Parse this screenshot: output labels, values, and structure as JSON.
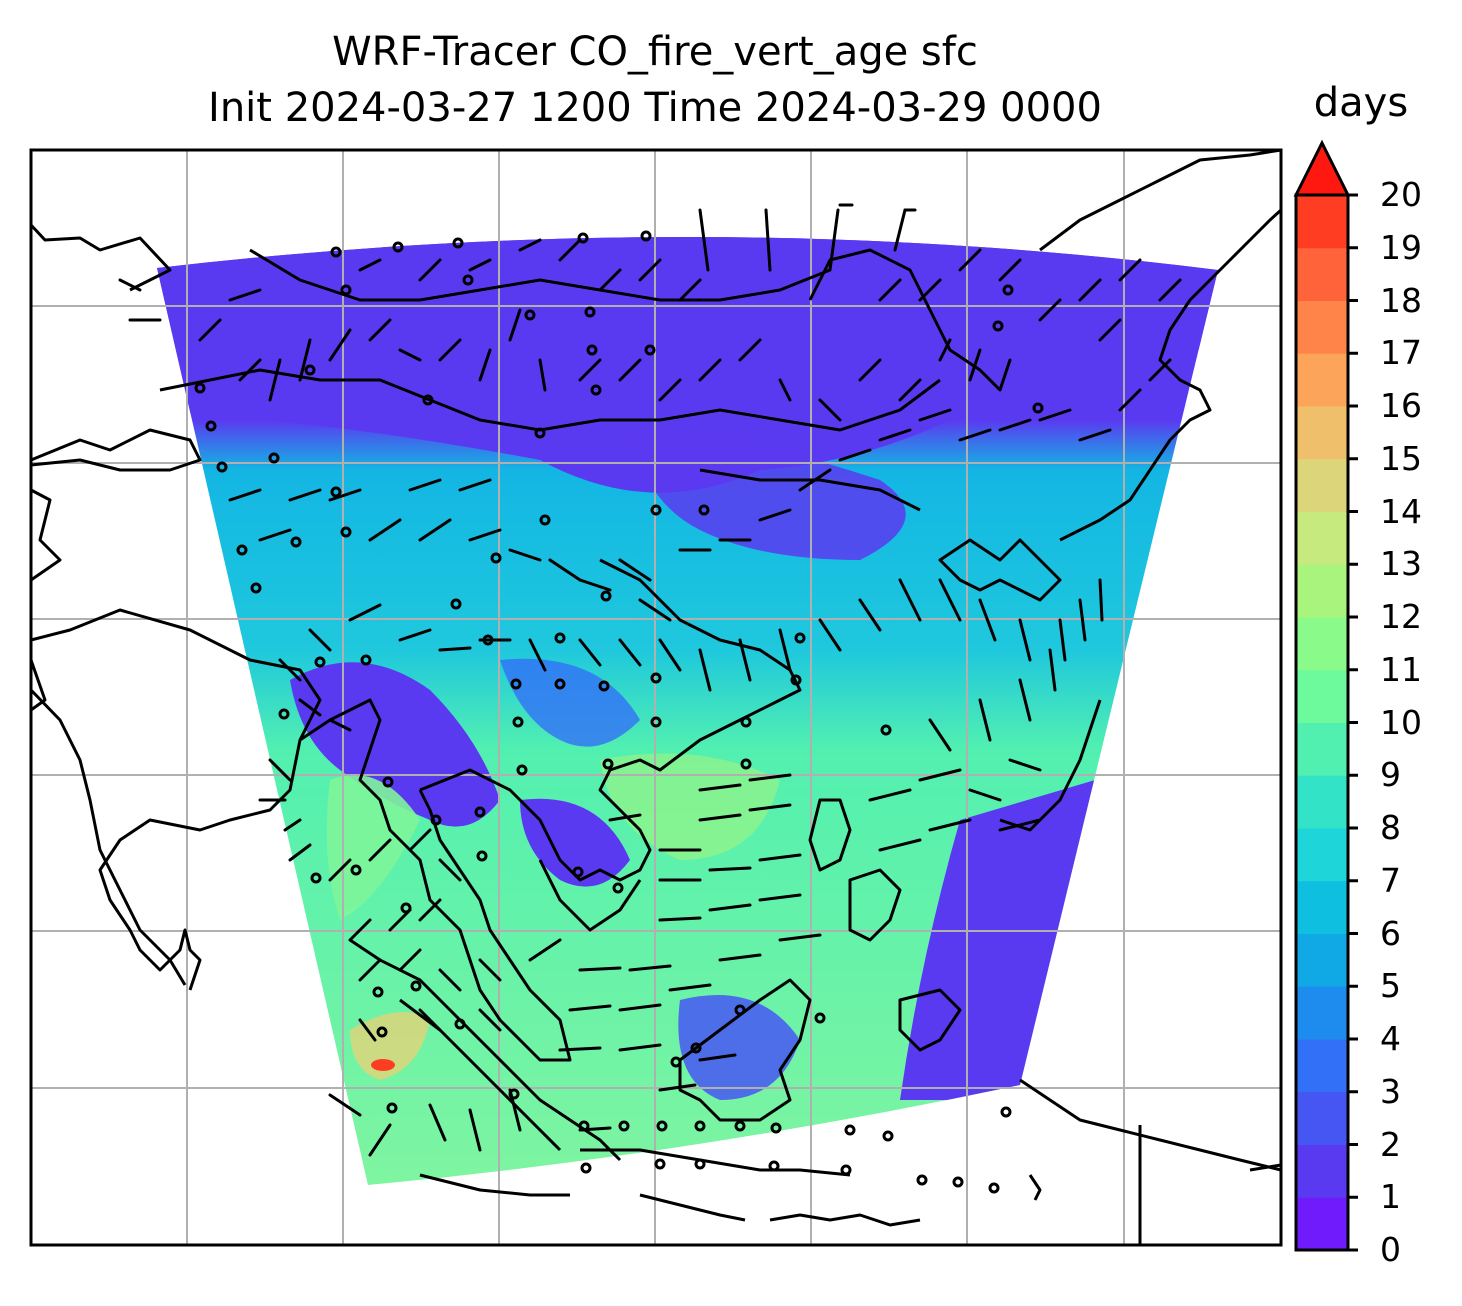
{
  "title": {
    "line1": "WRF-Tracer CO_fire_vert_age sfc",
    "line2": "Init 2024-03-27 1200 Time 2024-03-29 0000"
  },
  "colorbar": {
    "units": "days",
    "min": 0,
    "max": 20,
    "extend": "max",
    "ticks": [
      "0",
      "1",
      "2",
      "3",
      "4",
      "5",
      "6",
      "7",
      "8",
      "9",
      "10",
      "11",
      "12",
      "13",
      "14",
      "15",
      "16",
      "17",
      "18",
      "19",
      "20"
    ],
    "colors": [
      "#6f1bfb",
      "#5a3af0",
      "#4656f3",
      "#3271f7",
      "#1e8bef",
      "#11a8e6",
      "#0ebfe0",
      "#1ed5da",
      "#33e3c8",
      "#52f0b0",
      "#6dfa9c",
      "#8afb8a",
      "#a8f47c",
      "#c7ea7e",
      "#dcd57a",
      "#f0bf6c",
      "#fca55a",
      "#fe844a",
      "#ff633a",
      "#ff3d22",
      "#ff1810"
    ],
    "extend_color": "#ff1810"
  },
  "map": {
    "projection": "lambert-conformal",
    "gridlines": true,
    "wind_barbs": true,
    "colors": {
      "north_band": "#5a3af0",
      "middle_band": "#11b5e3",
      "south_band": "#7ef59a",
      "coast": "#000000",
      "grid": "#b0b0b0"
    }
  }
}
